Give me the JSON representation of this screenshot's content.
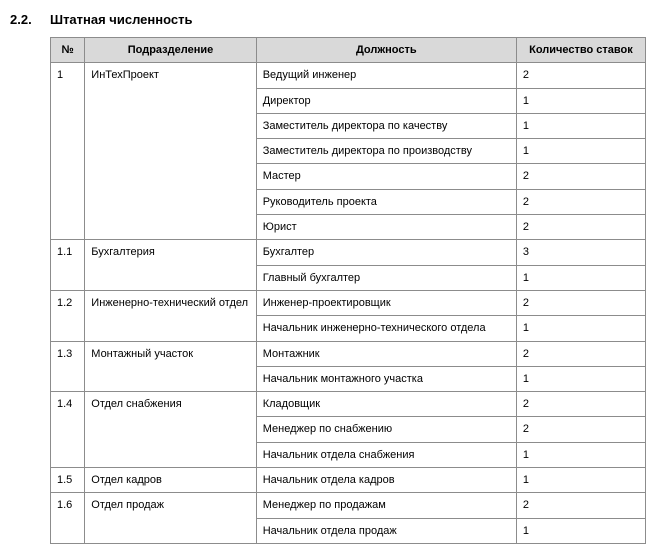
{
  "section": {
    "number": "2.2.",
    "title": "Штатная численность"
  },
  "table": {
    "columns": [
      "№",
      "Подразделение",
      "Должность",
      "Количество ставок"
    ],
    "groups": [
      {
        "num": "1",
        "department": "ИнТехПроект",
        "positions": [
          {
            "title": "Ведущий инженер",
            "count": "2"
          },
          {
            "title": "Директор",
            "count": "1"
          },
          {
            "title": "Заместитель директора по качеству",
            "count": "1"
          },
          {
            "title": "Заместитель директора по производству",
            "count": "1"
          },
          {
            "title": "Мастер",
            "count": "2"
          },
          {
            "title": "Руководитель проекта",
            "count": "2"
          },
          {
            "title": "Юрист",
            "count": "2"
          }
        ]
      },
      {
        "num": "1.1",
        "department": "Бухгалтерия",
        "positions": [
          {
            "title": "Бухгалтер",
            "count": "3"
          },
          {
            "title": "Главный бухгалтер",
            "count": "1"
          }
        ]
      },
      {
        "num": "1.2",
        "department": "Инженерно-технический от­дел",
        "positions": [
          {
            "title": "Инженер-проектировщик",
            "count": "2"
          },
          {
            "title": "Начальник инженерно-технического от­дела",
            "count": "1"
          }
        ]
      },
      {
        "num": "1.3",
        "department": "Монтажный участок",
        "positions": [
          {
            "title": "Монтажник",
            "count": "2"
          },
          {
            "title": "Начальник монтажного участка",
            "count": "1"
          }
        ]
      },
      {
        "num": "1.4",
        "department": "Отдел снабжения",
        "positions": [
          {
            "title": "Кладовщик",
            "count": "2"
          },
          {
            "title": "Менеджер по снабжению",
            "count": "2"
          },
          {
            "title": "Начальник отдела снабжения",
            "count": "1"
          }
        ]
      },
      {
        "num": "1.5",
        "department": "Отдел кадров",
        "positions": [
          {
            "title": "Начальник отдела кадров",
            "count": "1"
          }
        ]
      },
      {
        "num": "1.6",
        "department": "Отдел продаж",
        "positions": [
          {
            "title": "Менеджер по продажам",
            "count": "2"
          },
          {
            "title": "Начальник отдела продаж",
            "count": "1"
          }
        ]
      }
    ]
  }
}
